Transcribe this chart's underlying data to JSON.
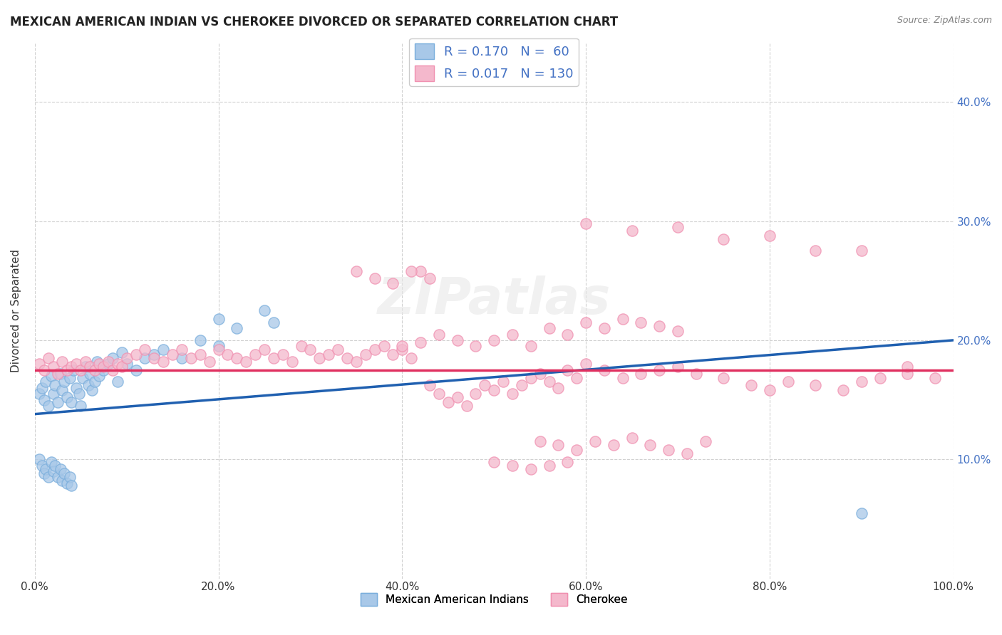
{
  "title": "MEXICAN AMERICAN INDIAN VS CHEROKEE DIVORCED OR SEPARATED CORRELATION CHART",
  "source": "Source: ZipAtlas.com",
  "ylabel": "Divorced or Separated",
  "watermark": "ZIPatlas",
  "legend_box1_label": "R = 0.170   N =  60",
  "legend_box2_label": "R = 0.017   N = 130",
  "legend_entry1": "Mexican American Indians",
  "legend_entry2": "Cherokee",
  "blue_color": "#a8c8e8",
  "pink_color": "#f4b8cc",
  "blue_dot_edge": "#7aaedc",
  "pink_dot_edge": "#f090b0",
  "blue_line_color": "#2060b0",
  "pink_line_color": "#e03060",
  "xlim": [
    0.0,
    1.0
  ],
  "ylim": [
    0.0,
    0.45
  ],
  "xticks": [
    0.0,
    0.2,
    0.4,
    0.6,
    0.8,
    1.0
  ],
  "yticks": [
    0.1,
    0.2,
    0.3,
    0.4
  ],
  "xticklabels": [
    "0.0%",
    "20.0%",
    "40.0%",
    "60.0%",
    "80.0%",
    "100.0%"
  ],
  "left_yticklabels": [
    "",
    "",
    "",
    ""
  ],
  "right_yticklabels": [
    "10.0%",
    "20.0%",
    "30.0%",
    "40.0%"
  ],
  "blue_trend_x0": 0.0,
  "blue_trend_y0": 0.138,
  "blue_trend_x1": 1.0,
  "blue_trend_y1": 0.2,
  "pink_trend_y": 0.175,
  "background_color": "#ffffff",
  "grid_color": "#cccccc",
  "right_ytick_color": "#4472c4",
  "blue_scatter_x": [
    0.005,
    0.008,
    0.01,
    0.012,
    0.015,
    0.018,
    0.02,
    0.022,
    0.025,
    0.028,
    0.03,
    0.032,
    0.035,
    0.038,
    0.04,
    0.042,
    0.045,
    0.048,
    0.05,
    0.052,
    0.055,
    0.058,
    0.06,
    0.062,
    0.065,
    0.068,
    0.07,
    0.075,
    0.08,
    0.085,
    0.09,
    0.095,
    0.1,
    0.11,
    0.12,
    0.13,
    0.14,
    0.16,
    0.18,
    0.2,
    0.005,
    0.008,
    0.01,
    0.012,
    0.015,
    0.018,
    0.02,
    0.022,
    0.025,
    0.028,
    0.03,
    0.032,
    0.035,
    0.038,
    0.04,
    0.2,
    0.22,
    0.25,
    0.9,
    0.26
  ],
  "blue_scatter_y": [
    0.155,
    0.16,
    0.15,
    0.165,
    0.145,
    0.17,
    0.155,
    0.162,
    0.148,
    0.172,
    0.158,
    0.165,
    0.152,
    0.168,
    0.148,
    0.175,
    0.16,
    0.155,
    0.145,
    0.168,
    0.178,
    0.162,
    0.172,
    0.158,
    0.165,
    0.182,
    0.17,
    0.175,
    0.18,
    0.185,
    0.165,
    0.19,
    0.18,
    0.175,
    0.185,
    0.188,
    0.192,
    0.185,
    0.2,
    0.195,
    0.1,
    0.095,
    0.088,
    0.092,
    0.085,
    0.098,
    0.09,
    0.095,
    0.085,
    0.092,
    0.082,
    0.088,
    0.08,
    0.085,
    0.078,
    0.218,
    0.21,
    0.225,
    0.055,
    0.215
  ],
  "pink_scatter_x": [
    0.005,
    0.01,
    0.015,
    0.02,
    0.025,
    0.03,
    0.035,
    0.04,
    0.045,
    0.05,
    0.055,
    0.06,
    0.065,
    0.07,
    0.075,
    0.08,
    0.085,
    0.09,
    0.095,
    0.1,
    0.11,
    0.12,
    0.13,
    0.14,
    0.15,
    0.16,
    0.17,
    0.18,
    0.19,
    0.2,
    0.21,
    0.22,
    0.23,
    0.24,
    0.25,
    0.26,
    0.27,
    0.28,
    0.29,
    0.3,
    0.31,
    0.32,
    0.33,
    0.34,
    0.35,
    0.36,
    0.37,
    0.38,
    0.39,
    0.4,
    0.41,
    0.42,
    0.43,
    0.44,
    0.45,
    0.46,
    0.47,
    0.48,
    0.49,
    0.5,
    0.51,
    0.52,
    0.53,
    0.54,
    0.55,
    0.56,
    0.57,
    0.58,
    0.59,
    0.6,
    0.62,
    0.64,
    0.66,
    0.68,
    0.7,
    0.72,
    0.75,
    0.78,
    0.8,
    0.82,
    0.85,
    0.88,
    0.9,
    0.92,
    0.95,
    0.98,
    0.4,
    0.42,
    0.44,
    0.46,
    0.48,
    0.5,
    0.52,
    0.54,
    0.56,
    0.58,
    0.6,
    0.62,
    0.64,
    0.66,
    0.68,
    0.7,
    0.35,
    0.37,
    0.39,
    0.41,
    0.43,
    0.6,
    0.65,
    0.7,
    0.75,
    0.8,
    0.85,
    0.9,
    0.95,
    0.55,
    0.57,
    0.59,
    0.61,
    0.63,
    0.65,
    0.67,
    0.69,
    0.71,
    0.73,
    0.5,
    0.52,
    0.54,
    0.56,
    0.58
  ],
  "pink_scatter_y": [
    0.18,
    0.175,
    0.185,
    0.178,
    0.172,
    0.182,
    0.175,
    0.178,
    0.18,
    0.175,
    0.182,
    0.178,
    0.175,
    0.18,
    0.178,
    0.182,
    0.175,
    0.18,
    0.178,
    0.185,
    0.188,
    0.192,
    0.185,
    0.182,
    0.188,
    0.192,
    0.185,
    0.188,
    0.182,
    0.192,
    0.188,
    0.185,
    0.182,
    0.188,
    0.192,
    0.185,
    0.188,
    0.182,
    0.195,
    0.192,
    0.185,
    0.188,
    0.192,
    0.185,
    0.182,
    0.188,
    0.192,
    0.195,
    0.188,
    0.192,
    0.185,
    0.258,
    0.162,
    0.155,
    0.148,
    0.152,
    0.145,
    0.155,
    0.162,
    0.158,
    0.165,
    0.155,
    0.162,
    0.168,
    0.172,
    0.165,
    0.16,
    0.175,
    0.168,
    0.18,
    0.175,
    0.168,
    0.172,
    0.175,
    0.178,
    0.172,
    0.168,
    0.162,
    0.158,
    0.165,
    0.162,
    0.158,
    0.165,
    0.168,
    0.172,
    0.168,
    0.195,
    0.198,
    0.205,
    0.2,
    0.195,
    0.2,
    0.205,
    0.195,
    0.21,
    0.205,
    0.215,
    0.21,
    0.218,
    0.215,
    0.212,
    0.208,
    0.258,
    0.252,
    0.248,
    0.258,
    0.252,
    0.298,
    0.292,
    0.295,
    0.285,
    0.288,
    0.275,
    0.275,
    0.178,
    0.115,
    0.112,
    0.108,
    0.115,
    0.112,
    0.118,
    0.112,
    0.108,
    0.105,
    0.115,
    0.098,
    0.095,
    0.092,
    0.095,
    0.098
  ]
}
